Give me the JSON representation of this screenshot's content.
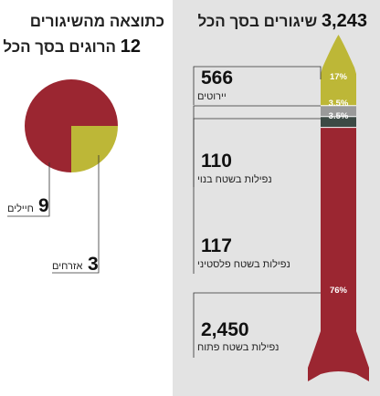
{
  "chart_data": [
    {
      "type": "pie",
      "title": "כתוצאה מהשיגורים",
      "subtitle_number": "12",
      "subtitle_text": "הרוגים בסך הכל",
      "slices": [
        {
          "name": "חיילים",
          "value": 9,
          "color": "#9b2631"
        },
        {
          "name": "אזרחים",
          "value": 3,
          "color": "#bdb737"
        }
      ]
    },
    {
      "type": "bar",
      "title_number": "3,243",
      "title_text": "שיגורים בסך הכל",
      "segments": [
        {
          "name": "יירוטים",
          "value": 566,
          "value_label": "566",
          "percent_label": "17%",
          "color": "#bdb737"
        },
        {
          "name": "נפילות בשטח בנוי",
          "value": 110,
          "value_label": "110",
          "percent_label": "3.5%",
          "color": "#9a9a9a"
        },
        {
          "name": "נפילות בשטח פלסטיני",
          "value": 117,
          "value_label": "117",
          "percent_label": "3.5%",
          "color": "#3d4a45"
        },
        {
          "name": "נפילות בשטח פתוח",
          "value": 2450,
          "value_label": "2,450",
          "percent_label": "76%",
          "color": "#9b2631"
        }
      ]
    }
  ]
}
